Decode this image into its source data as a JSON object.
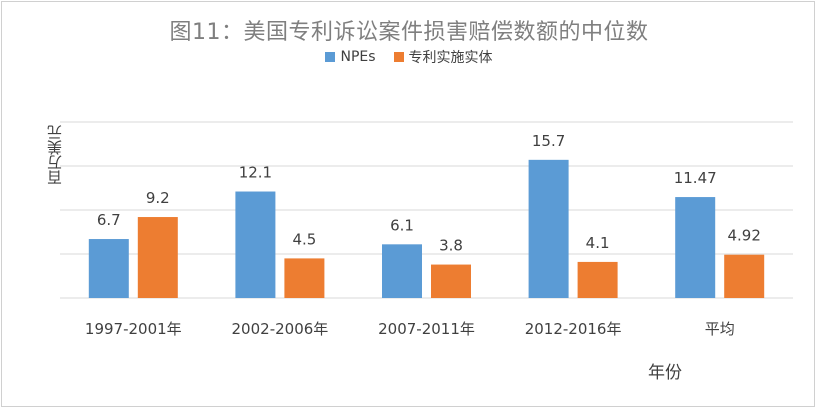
{
  "chart_data": {
    "type": "bar",
    "title": "图11：美国专利诉讼案件损害赔偿数额的中位数",
    "ylabel": "百万美元",
    "xlabel": "年份",
    "categories": [
      "1997-2001年",
      "2002-2006年",
      "2007-2011年",
      "2012-2016年",
      "平均"
    ],
    "series": [
      {
        "name": "NPEs",
        "color": "#5b9bd5",
        "values": [
          6.7,
          12.1,
          6.1,
          15.7,
          11.47
        ],
        "labels": [
          "6.7",
          "12.1",
          "6.1",
          "15.7",
          "11.47"
        ]
      },
      {
        "name": "专利实施实体",
        "color": "#ed7d31",
        "values": [
          9.2,
          4.5,
          3.8,
          4.1,
          4.92
        ],
        "labels": [
          "9.2",
          "4.5",
          "3.8",
          "4.1",
          "4.92"
        ]
      }
    ],
    "ylim": [
      0,
      20
    ],
    "grid": true,
    "legend_position": "top"
  }
}
